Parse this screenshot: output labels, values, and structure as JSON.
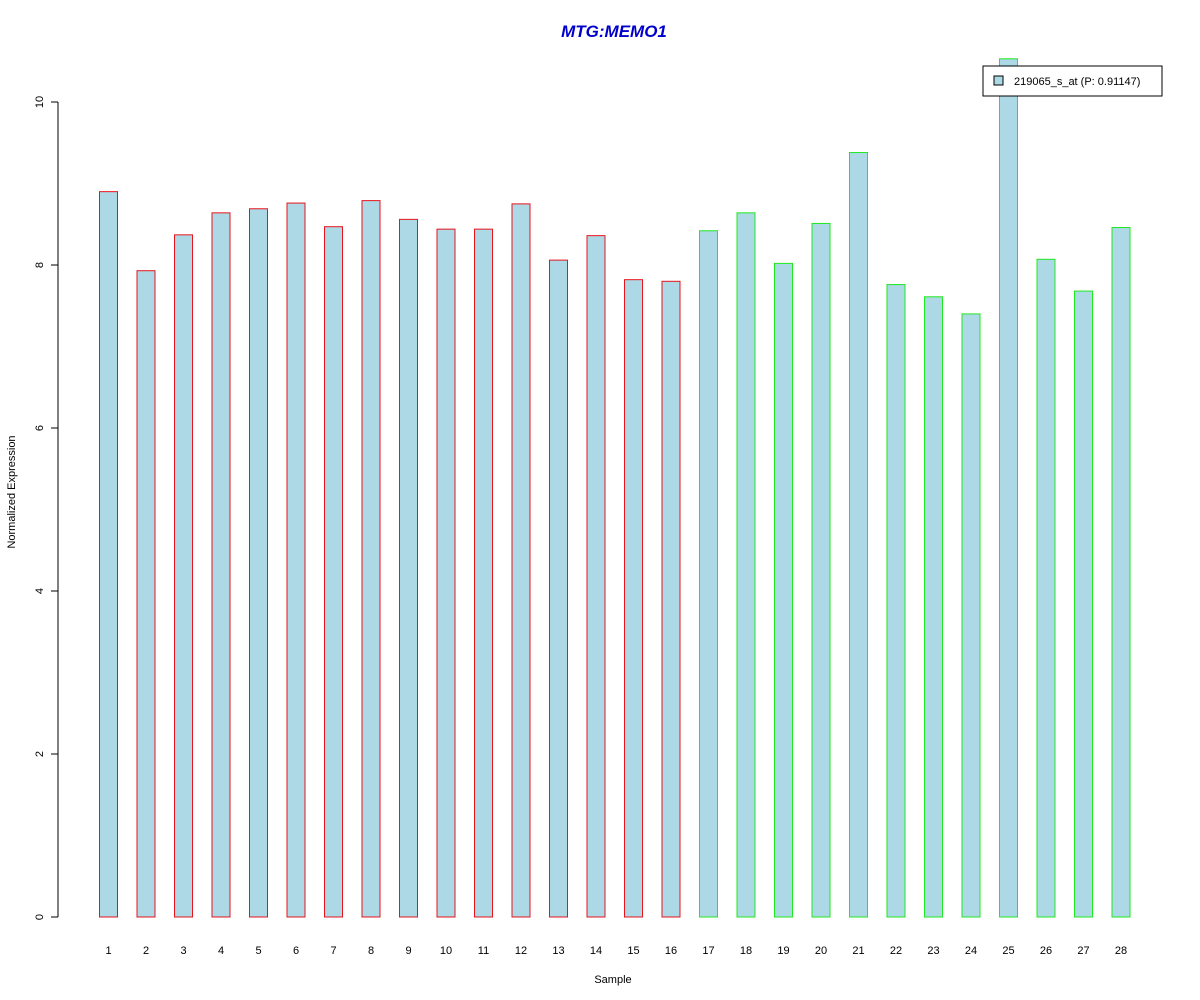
{
  "chart_data": {
    "type": "bar",
    "title": "MTG:MEMO1",
    "xlabel": "Sample",
    "ylabel": "Normalized Expression",
    "ylim": [
      0,
      10
    ],
    "yticks": [
      0,
      2,
      4,
      6,
      8,
      10
    ],
    "categories": [
      "1",
      "2",
      "3",
      "4",
      "5",
      "6",
      "7",
      "8",
      "9",
      "10",
      "11",
      "12",
      "13",
      "14",
      "15",
      "16",
      "17",
      "18",
      "19",
      "20",
      "21",
      "22",
      "23",
      "24",
      "25",
      "26",
      "27",
      "28"
    ],
    "series": [
      {
        "name": "219065_s_at (P: 0.91147)",
        "values": [
          8.9,
          7.93,
          8.37,
          8.64,
          8.69,
          8.76,
          8.47,
          8.79,
          8.56,
          8.44,
          8.44,
          8.75,
          8.06,
          8.36,
          7.82,
          7.8,
          8.42,
          8.64,
          8.02,
          8.51,
          9.38,
          7.76,
          7.61,
          7.4,
          10.53,
          8.07,
          7.68,
          8.46
        ]
      }
    ],
    "groups": [
      {
        "samples": [
          1,
          16
        ],
        "border_color": "#e8141b"
      },
      {
        "samples": [
          17,
          28
        ],
        "border_color": "#1ee81e"
      }
    ],
    "bar_fill": "#add8e6",
    "title_color": "#0000cd",
    "legend_position": "top-right",
    "grid": false
  }
}
